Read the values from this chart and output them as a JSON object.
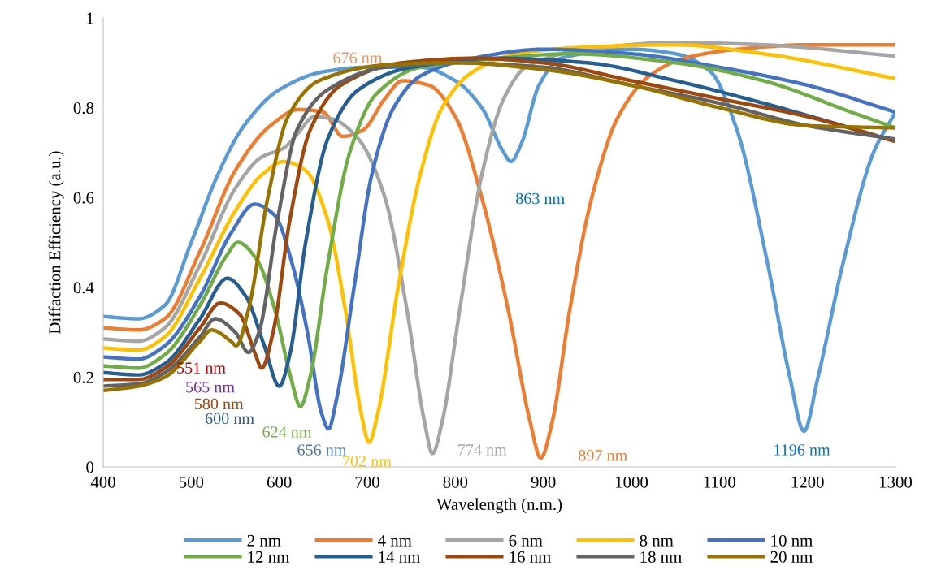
{
  "chart_data": {
    "type": "line",
    "xlabel": "Wavelength (n.m.)",
    "ylabel": "Diffaction Efficiency (a.u.)",
    "xlim": [
      400,
      1300
    ],
    "xticks": [
      400,
      500,
      600,
      700,
      800,
      900,
      1000,
      1100,
      1200,
      1300
    ],
    "ylim": [
      0,
      1
    ],
    "yticks": [
      0,
      0.2,
      0.4,
      0.6,
      0.8,
      1
    ],
    "grid": false,
    "legend": "bottom",
    "marker": "none",
    "line_style": "solid",
    "series": [
      {
        "name": "2 nm",
        "color": "#5b9bd5",
        "x": [
          400,
          440,
          470,
          500,
          530,
          560,
          600,
          650,
          700,
          760,
          800,
          830,
          855,
          863,
          875,
          895,
          920,
          1000,
          1050,
          1090,
          1120,
          1155,
          1180,
          1196,
          1212,
          1240,
          1275,
          1300
        ],
        "values": [
          0.335,
          0.33,
          0.36,
          0.5,
          0.65,
          0.76,
          0.84,
          0.88,
          0.89,
          0.89,
          0.86,
          0.8,
          0.7,
          0.68,
          0.72,
          0.85,
          0.91,
          0.93,
          0.92,
          0.88,
          0.75,
          0.45,
          0.2,
          0.08,
          0.2,
          0.45,
          0.7,
          0.79
        ]
      },
      {
        "name": "4 nm",
        "color": "#ed7d31",
        "x": [
          400,
          440,
          470,
          510,
          550,
          590,
          622,
          650,
          672,
          695,
          720,
          740,
          770,
          800,
          830,
          860,
          885,
          897,
          910,
          930,
          955,
          985,
          1020,
          1060,
          1120,
          1200,
          1300
        ],
        "values": [
          0.31,
          0.305,
          0.33,
          0.48,
          0.66,
          0.76,
          0.796,
          0.79,
          0.736,
          0.75,
          0.82,
          0.86,
          0.85,
          0.78,
          0.6,
          0.35,
          0.1,
          0.02,
          0.1,
          0.35,
          0.6,
          0.78,
          0.87,
          0.91,
          0.93,
          0.94,
          0.94
        ]
      },
      {
        "name": "6 nm",
        "color": "#a5a5a5",
        "x": [
          400,
          440,
          470,
          510,
          550,
          580,
          605,
          620,
          640,
          660,
          690,
          720,
          745,
          765,
          774,
          785,
          805,
          830,
          855,
          880,
          950,
          1050,
          1150,
          1300
        ],
        "values": [
          0.285,
          0.28,
          0.31,
          0.45,
          0.62,
          0.69,
          0.71,
          0.74,
          0.78,
          0.775,
          0.73,
          0.6,
          0.35,
          0.1,
          0.03,
          0.1,
          0.35,
          0.65,
          0.82,
          0.89,
          0.93,
          0.945,
          0.94,
          0.915
        ]
      },
      {
        "name": "8 nm",
        "color": "#ffc000",
        "x": [
          400,
          440,
          470,
          510,
          550,
          580,
          605,
          630,
          655,
          675,
          693,
          702,
          712,
          735,
          760,
          785,
          820,
          870,
          950,
          1050,
          1150,
          1300
        ],
        "values": [
          0.265,
          0.26,
          0.29,
          0.42,
          0.57,
          0.65,
          0.68,
          0.66,
          0.55,
          0.35,
          0.12,
          0.055,
          0.12,
          0.4,
          0.65,
          0.8,
          0.88,
          0.92,
          0.935,
          0.94,
          0.92,
          0.865
        ]
      },
      {
        "name": "10 nm",
        "color": "#4472c4",
        "x": [
          400,
          440,
          470,
          510,
          545,
          572,
          595,
          615,
          632,
          648,
          656,
          665,
          685,
          705,
          730,
          760,
          820,
          900,
          1000,
          1100,
          1200,
          1300
        ],
        "values": [
          0.245,
          0.24,
          0.27,
          0.38,
          0.52,
          0.585,
          0.56,
          0.45,
          0.3,
          0.12,
          0.085,
          0.15,
          0.4,
          0.65,
          0.8,
          0.87,
          0.91,
          0.93,
          0.92,
          0.89,
          0.85,
          0.79
        ]
      },
      {
        "name": "12 nm",
        "color": "#70ad47",
        "x": [
          400,
          440,
          470,
          510,
          540,
          553,
          575,
          595,
          613,
          624,
          635,
          655,
          680,
          710,
          760,
          850,
          930,
          1050,
          1150,
          1250,
          1300
        ],
        "values": [
          0.225,
          0.22,
          0.25,
          0.36,
          0.47,
          0.5,
          0.46,
          0.35,
          0.2,
          0.135,
          0.2,
          0.45,
          0.7,
          0.83,
          0.89,
          0.91,
          0.92,
          0.9,
          0.86,
          0.79,
          0.755
        ]
      },
      {
        "name": "14 nm",
        "color": "#255e91",
        "x": [
          400,
          440,
          470,
          510,
          541,
          562,
          583,
          600,
          612,
          630,
          655,
          690,
          750,
          850,
          950,
          1050,
          1150,
          1240,
          1300
        ],
        "values": [
          0.21,
          0.205,
          0.23,
          0.33,
          0.42,
          0.38,
          0.27,
          0.18,
          0.25,
          0.5,
          0.73,
          0.84,
          0.89,
          0.91,
          0.9,
          0.86,
          0.81,
          0.76,
          0.725
        ]
      },
      {
        "name": "16 nm",
        "color": "#9e480e",
        "x": [
          400,
          440,
          470,
          510,
          533,
          555,
          573,
          580,
          593,
          612,
          635,
          670,
          740,
          820,
          900,
          1000,
          1100,
          1200,
          1300
        ],
        "values": [
          0.195,
          0.195,
          0.22,
          0.31,
          0.365,
          0.34,
          0.25,
          0.22,
          0.3,
          0.55,
          0.75,
          0.85,
          0.9,
          0.91,
          0.9,
          0.86,
          0.82,
          0.78,
          0.725
        ]
      },
      {
        "name": "18 nm",
        "color": "#636363",
        "x": [
          400,
          440,
          470,
          510,
          527,
          550,
          565,
          577,
          598,
          620,
          655,
          720,
          800,
          900,
          1000,
          1100,
          1200,
          1300
        ],
        "values": [
          0.18,
          0.185,
          0.21,
          0.29,
          0.33,
          0.3,
          0.255,
          0.3,
          0.55,
          0.75,
          0.84,
          0.89,
          0.9,
          0.89,
          0.85,
          0.81,
          0.76,
          0.73
        ]
      },
      {
        "name": "20 nm",
        "color": "#997300",
        "x": [
          400,
          440,
          470,
          510,
          523,
          545,
          551,
          565,
          587,
          610,
          645,
          720,
          800,
          900,
          1000,
          1100,
          1200,
          1300
        ],
        "values": [
          0.17,
          0.18,
          0.2,
          0.28,
          0.305,
          0.28,
          0.27,
          0.35,
          0.6,
          0.78,
          0.86,
          0.895,
          0.9,
          0.885,
          0.85,
          0.8,
          0.76,
          0.755
        ]
      }
    ],
    "annotations": [
      {
        "text": "551 nm",
        "x": 551,
        "y": 0.27
      },
      {
        "text": "565 nm",
        "x": 565,
        "y": 0.255
      },
      {
        "text": "580 nm",
        "x": 580,
        "y": 0.22
      },
      {
        "text": "600 nm",
        "x": 600,
        "y": 0.18
      },
      {
        "text": "624 nm",
        "x": 624,
        "y": 0.135
      },
      {
        "text": "656 nm",
        "x": 656,
        "y": 0.085
      },
      {
        "text": "702 nm",
        "x": 702,
        "y": 0.055
      },
      {
        "text": "774 nm",
        "x": 774,
        "y": 0.03
      },
      {
        "text": "897 nm",
        "x": 897,
        "y": 0.02
      },
      {
        "text": "863 nm",
        "x": 863,
        "y": 0.68
      },
      {
        "text": "1196 nm",
        "x": 1196,
        "y": 0.08
      },
      "676 nm"
    ]
  }
}
